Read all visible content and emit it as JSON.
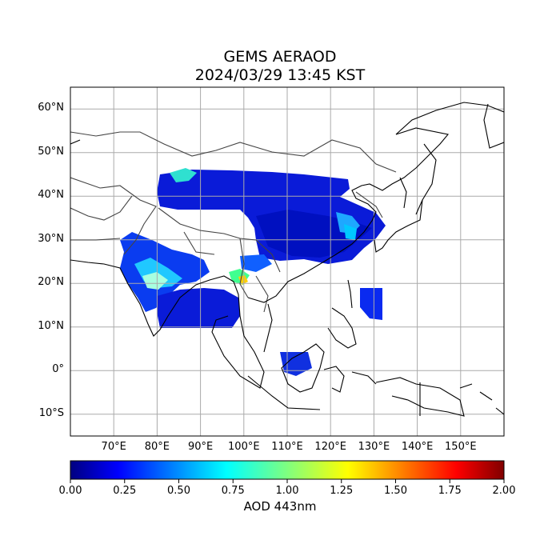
{
  "title": "GEMS AERAOD",
  "subtitle": "2024/03/29 13:45 KST",
  "map": {
    "projection": "PlateCarree",
    "lon_range": [
      60,
      160
    ],
    "lat_range": [
      -15,
      65
    ],
    "lat_ticks": [
      {
        "value": 60,
        "label": "60°N"
      },
      {
        "value": 50,
        "label": "50°N"
      },
      {
        "value": 40,
        "label": "40°N"
      },
      {
        "value": 30,
        "label": "30°N"
      },
      {
        "value": 20,
        "label": "20°N"
      },
      {
        "value": 10,
        "label": "10°N"
      },
      {
        "value": 0,
        "label": "0°"
      },
      {
        "value": -10,
        "label": "10°S"
      }
    ],
    "lon_ticks": [
      {
        "value": 70,
        "label": "70°E"
      },
      {
        "value": 80,
        "label": "80°E"
      },
      {
        "value": 90,
        "label": "90°E"
      },
      {
        "value": 100,
        "label": "100°E"
      },
      {
        "value": 110,
        "label": "110°E"
      },
      {
        "value": 120,
        "label": "120°E"
      },
      {
        "value": 130,
        "label": "130°E"
      },
      {
        "value": 140,
        "label": "140°E"
      },
      {
        "value": 150,
        "label": "150°E"
      }
    ],
    "gridlines": true,
    "colors": {
      "grid": "#aaaaaa",
      "coastline": "#000000",
      "borders": "#444444"
    }
  },
  "colorbar": {
    "label": "AOD 443nm",
    "min": 0.0,
    "max": 2.0,
    "colormap": "jet",
    "ticks": [
      "0.00",
      "0.25",
      "0.50",
      "0.75",
      "1.00",
      "1.25",
      "1.50",
      "1.75",
      "2.00"
    ]
  }
}
